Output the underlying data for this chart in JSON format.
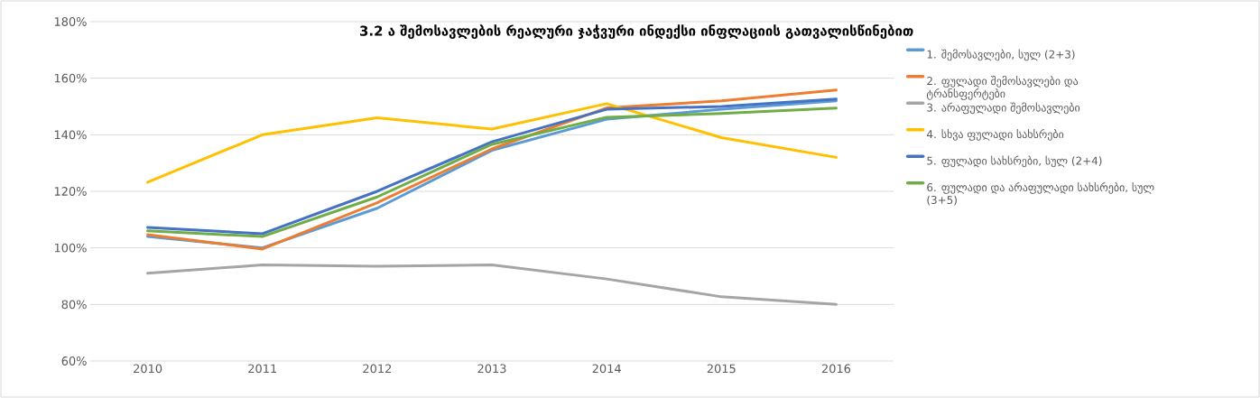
{
  "chart_data": {
    "type": "line",
    "title": "3.2 ა შემოსავლების რეალური ჯაჭვური ინდექსი ინფლაციის გათვალისწინებით",
    "categories": [
      "2010",
      "2011",
      "2012",
      "2013",
      "2014",
      "2015",
      "2016"
    ],
    "series": [
      {
        "name": "1. შემოსავლები, სულ (2+3)",
        "color": "#5b9bd5",
        "values": [
          104,
          100,
          114,
          134.5,
          145.5,
          149,
          152
        ]
      },
      {
        "name": "2. ფულადი შემოსავლები და ტრანსფერტები",
        "color": "#ed7d31",
        "values": [
          104.7,
          99.6,
          116,
          135,
          149.5,
          152,
          155.8
        ]
      },
      {
        "name": "3. არაფულადი შემოსავლები",
        "color": "#a5a5a5",
        "values": [
          91,
          94,
          93.5,
          94,
          89,
          82.7,
          80
        ]
      },
      {
        "name": "4. სხვა ფულადი სახსრები",
        "color": "#ffc000",
        "values": [
          123.2,
          140,
          146,
          142,
          151,
          139,
          132
        ]
      },
      {
        "name": "5. ფულადი სახსრები, სულ (2+4)",
        "color": "#4472c4",
        "values": [
          107.2,
          105,
          120,
          137.5,
          149,
          150,
          152.6
        ]
      },
      {
        "name": "6. ფულადი და არაფულადი სახსრები, სულ (3+5)",
        "color": "#70ad47",
        "values": [
          106,
          104,
          118,
          136.6,
          146.2,
          147.5,
          149.4
        ]
      }
    ],
    "ylim": [
      60,
      180
    ],
    "yticks": [
      {
        "value": 60,
        "label": "60%"
      },
      {
        "value": 80,
        "label": "80%"
      },
      {
        "value": 100,
        "label": "100%"
      },
      {
        "value": 120,
        "label": "120%"
      },
      {
        "value": 140,
        "label": "140%"
      },
      {
        "value": 160,
        "label": "160%"
      },
      {
        "value": 180,
        "label": "180%"
      }
    ],
    "grid": "y",
    "legend": "right",
    "line_style": "solid"
  }
}
